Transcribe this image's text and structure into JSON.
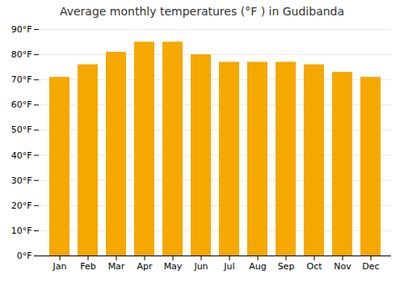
{
  "chart_data": {
    "type": "bar",
    "title": "Average monthly temperatures (°F ) in Gudibanda",
    "categories": [
      "Jan",
      "Feb",
      "Mar",
      "Apr",
      "May",
      "Jun",
      "Jul",
      "Aug",
      "Sep",
      "Oct",
      "Nov",
      "Dec"
    ],
    "values": [
      71,
      76,
      81,
      85,
      85,
      80,
      77,
      77,
      77,
      76,
      73,
      71
    ],
    "color": "#F5A800",
    "ylim": [
      0,
      90
    ],
    "yticks": [
      {
        "value": 0,
        "label": "0°F"
      },
      {
        "value": 10,
        "label": "10°F"
      },
      {
        "value": 20,
        "label": "20°F"
      },
      {
        "value": 30,
        "label": "30°F"
      },
      {
        "value": 40,
        "label": "40°F"
      },
      {
        "value": 50,
        "label": "50°F"
      },
      {
        "value": 60,
        "label": "60°F"
      },
      {
        "value": 70,
        "label": "70°F"
      },
      {
        "value": 80,
        "label": "80°F"
      },
      {
        "value": 90,
        "label": "90°F"
      }
    ],
    "grid": true
  }
}
